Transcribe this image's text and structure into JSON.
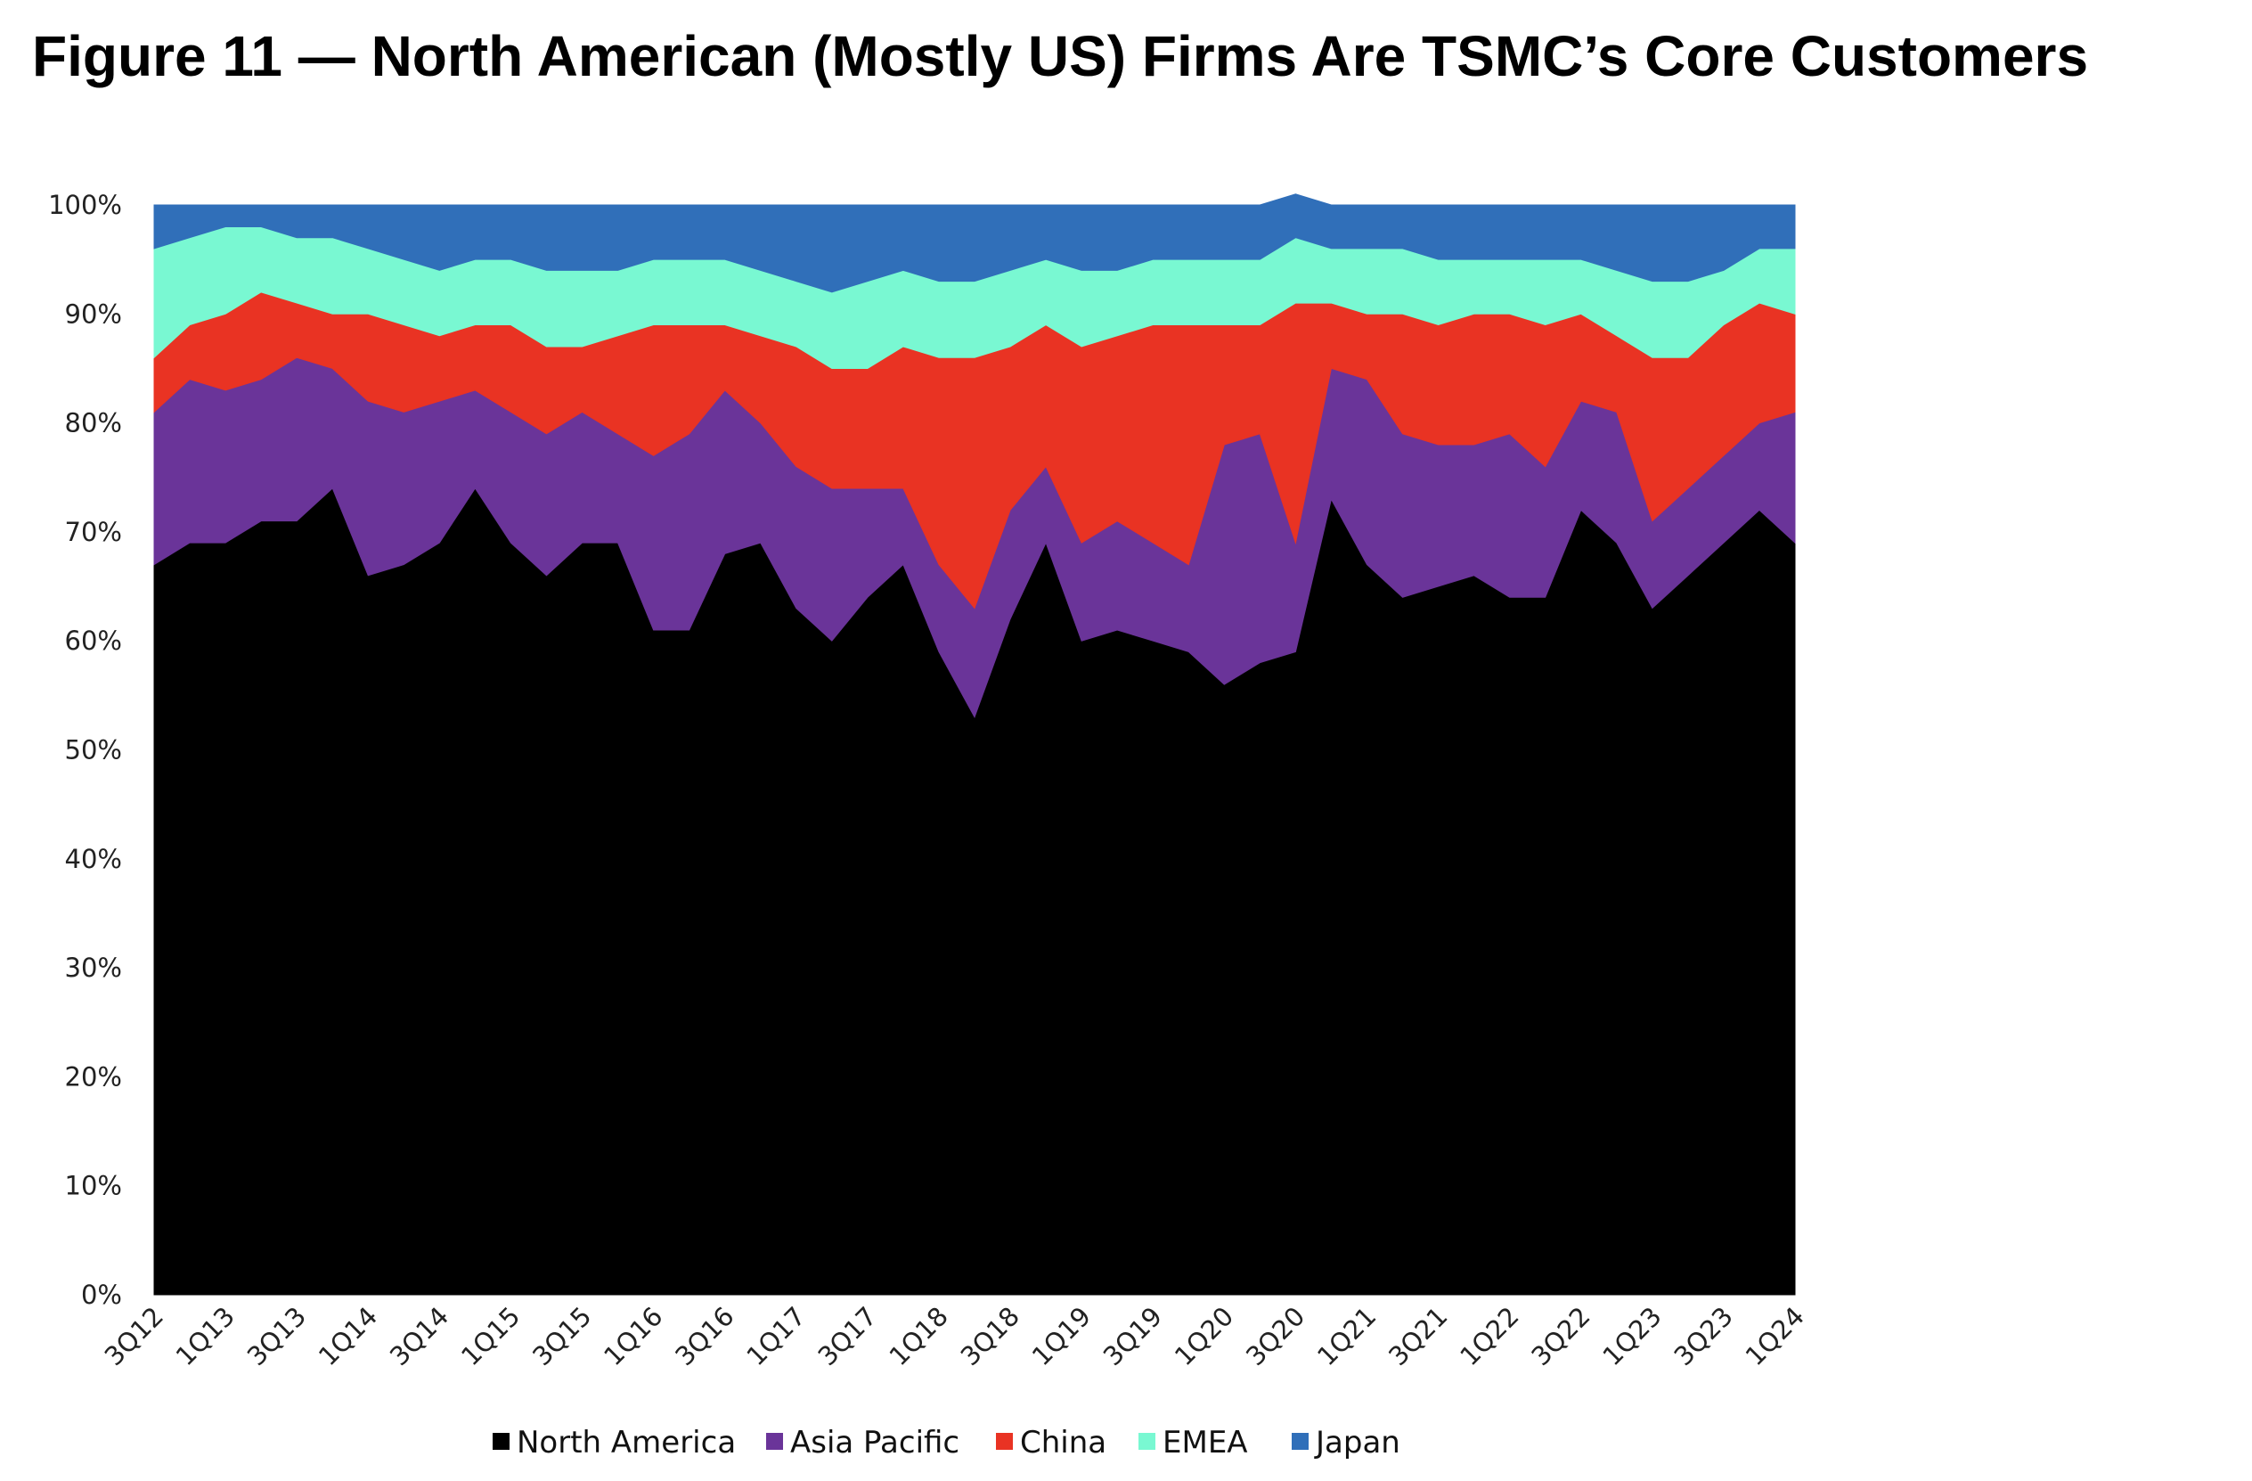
{
  "title": "Figure 11 — North American (Mostly US) Firms Are TSMC’s Core Customers",
  "chart_data": {
    "type": "area",
    "stacked": true,
    "title": "Figure 11 — North American (Mostly US) Firms Are TSMC’s Core Customers",
    "xlabel": "",
    "ylabel": "",
    "ylim": [
      0,
      100
    ],
    "y_ticks": [
      "0%",
      "10%",
      "20%",
      "30%",
      "40%",
      "50%",
      "60%",
      "70%",
      "80%",
      "90%",
      "100%"
    ],
    "x_tick_labels": [
      "3Q12",
      "1Q13",
      "3Q13",
      "1Q14",
      "3Q14",
      "1Q15",
      "3Q15",
      "1Q16",
      "3Q16",
      "1Q17",
      "3Q17",
      "1Q18",
      "3Q18",
      "1Q19",
      "3Q19",
      "1Q20",
      "3Q20",
      "1Q21",
      "3Q21",
      "1Q22",
      "3Q22",
      "1Q23",
      "3Q23",
      "1Q24"
    ],
    "x": [
      "3Q12",
      "4Q12",
      "1Q13",
      "2Q13",
      "3Q13",
      "4Q13",
      "1Q14",
      "2Q14",
      "3Q14",
      "4Q14",
      "1Q15",
      "2Q15",
      "3Q15",
      "4Q15",
      "1Q16",
      "2Q16",
      "3Q16",
      "4Q16",
      "1Q17",
      "2Q17",
      "3Q17",
      "4Q17",
      "1Q18",
      "2Q18",
      "3Q18",
      "4Q18",
      "1Q19",
      "2Q19",
      "3Q19",
      "4Q19",
      "1Q20",
      "2Q20",
      "3Q20",
      "4Q20",
      "1Q21",
      "2Q21",
      "3Q21",
      "4Q21",
      "1Q22",
      "2Q22",
      "3Q22",
      "4Q22",
      "1Q23",
      "2Q23",
      "3Q23",
      "4Q23",
      "1Q24"
    ],
    "legend_position": "bottom",
    "grid": false,
    "series": [
      {
        "name": "North America",
        "color": "#000000",
        "values": [
          67,
          69,
          69,
          71,
          71,
          74,
          66,
          67,
          69,
          74,
          69,
          66,
          69,
          69,
          61,
          61,
          68,
          69,
          63,
          60,
          64,
          67,
          59,
          53,
          62,
          69,
          60,
          61,
          60,
          59,
          56,
          58,
          59,
          73,
          67,
          64,
          65,
          66,
          64,
          64,
          72,
          69,
          63,
          66,
          69,
          72,
          69
        ]
      },
      {
        "name": "Asia Pacific",
        "color": "#6a3499",
        "values": [
          14,
          15,
          14,
          13,
          15,
          11,
          16,
          14,
          13,
          9,
          12,
          13,
          12,
          10,
          16,
          18,
          15,
          11,
          13,
          14,
          10,
          7,
          8,
          10,
          10,
          7,
          9,
          10,
          9,
          8,
          22,
          21,
          10,
          12,
          17,
          15,
          13,
          12,
          15,
          12,
          10,
          12,
          8,
          8,
          8,
          8,
          12
        ]
      },
      {
        "name": "China",
        "color": "#e93323",
        "values": [
          5,
          5,
          7,
          8,
          5,
          5,
          8,
          8,
          6,
          6,
          8,
          8,
          6,
          9,
          12,
          10,
          6,
          8,
          11,
          11,
          11,
          13,
          19,
          23,
          15,
          13,
          18,
          17,
          20,
          22,
          11,
          10,
          22,
          6,
          6,
          11,
          11,
          12,
          11,
          13,
          8,
          7,
          15,
          12,
          12,
          11,
          9
        ]
      },
      {
        "name": "EMEA",
        "color": "#79f8d2",
        "values": [
          10,
          8,
          8,
          6,
          6,
          7,
          6,
          6,
          6,
          6,
          6,
          7,
          7,
          6,
          6,
          6,
          6,
          6,
          6,
          7,
          8,
          7,
          7,
          7,
          7,
          6,
          7,
          6,
          6,
          6,
          6,
          6,
          6,
          5,
          6,
          6,
          6,
          5,
          5,
          6,
          5,
          6,
          7,
          7,
          5,
          5,
          6
        ]
      },
      {
        "name": "Japan",
        "color": "#306fb9",
        "values": [
          4,
          3,
          2,
          2,
          3,
          3,
          4,
          5,
          6,
          5,
          5,
          6,
          6,
          6,
          5,
          5,
          5,
          6,
          7,
          8,
          7,
          6,
          7,
          7,
          6,
          5,
          6,
          6,
          5,
          5,
          5,
          5,
          4,
          4,
          4,
          4,
          5,
          5,
          5,
          5,
          5,
          6,
          7,
          7,
          6,
          4,
          4
        ]
      }
    ]
  }
}
